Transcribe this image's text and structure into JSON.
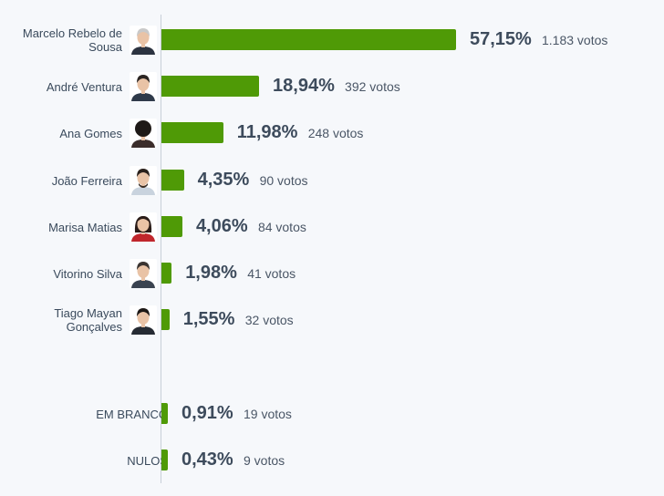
{
  "chart_data": {
    "type": "bar",
    "orientation": "horizontal",
    "xlim": [
      0,
      57.15
    ],
    "colors": {
      "bar": "#4f9a06"
    },
    "rows": [
      {
        "label": "Marcelo Rebelo de Sousa",
        "pct": 57.15,
        "pct_label": "57,15%",
        "votes": "1.183 votos",
        "avatar": true,
        "avatar_style": "grey-hair"
      },
      {
        "label": "André Ventura",
        "pct": 18.94,
        "pct_label": "18,94%",
        "votes": "392 votos",
        "avatar": true,
        "avatar_style": "dark-hair"
      },
      {
        "label": "Ana Gomes",
        "pct": 11.98,
        "pct_label": "11,98%",
        "votes": "248 votos",
        "avatar": true,
        "avatar_style": "curly-hair"
      },
      {
        "label": "João Ferreira",
        "pct": 4.35,
        "pct_label": "4,35%",
        "votes": "90 votos",
        "avatar": true,
        "avatar_style": "beard"
      },
      {
        "label": "Marisa Matias",
        "pct": 4.06,
        "pct_label": "4,06%",
        "votes": "84 votos",
        "avatar": true,
        "avatar_style": "red-top"
      },
      {
        "label": "Vitorino Silva",
        "pct": 1.98,
        "pct_label": "1,98%",
        "votes": "41 votos",
        "avatar": true,
        "avatar_style": "short-hair"
      },
      {
        "label": "Tiago Mayan Gonçalves",
        "pct": 1.55,
        "pct_label": "1,55%",
        "votes": "32 votos",
        "avatar": true,
        "avatar_style": "dark-suit"
      },
      {
        "label": "EM BRANCO",
        "pct": 0.91,
        "pct_label": "0,91%",
        "votes": "19 votos",
        "avatar": false
      },
      {
        "label": "NULOS",
        "pct": 0.43,
        "pct_label": "0,43%",
        "votes": "9 votos",
        "avatar": false
      }
    ]
  }
}
